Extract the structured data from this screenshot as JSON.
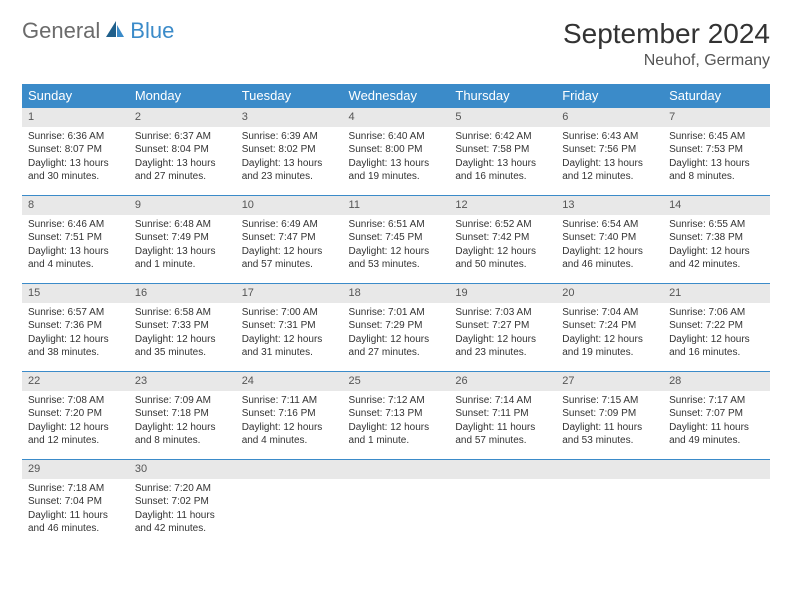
{
  "logo": {
    "text1": "General",
    "text2": "Blue"
  },
  "title": "September 2024",
  "location": "Neuhof, Germany",
  "colors": {
    "header_bg": "#3b8bc9",
    "header_text": "#ffffff",
    "daynum_bg": "#e8e8e8",
    "cell_border": "#3b8bc9",
    "body_text": "#333333",
    "logo_gray": "#6b6b6b",
    "logo_blue": "#3b8bc9",
    "page_bg": "#ffffff"
  },
  "typography": {
    "title_fontsize": 28,
    "location_fontsize": 16,
    "dayheader_fontsize": 13,
    "daynum_fontsize": 11,
    "cell_fontsize": 10
  },
  "dayHeaders": [
    "Sunday",
    "Monday",
    "Tuesday",
    "Wednesday",
    "Thursday",
    "Friday",
    "Saturday"
  ],
  "weeks": [
    [
      {
        "n": "1",
        "sr": "Sunrise: 6:36 AM",
        "ss": "Sunset: 8:07 PM",
        "dl": "Daylight: 13 hours and 30 minutes."
      },
      {
        "n": "2",
        "sr": "Sunrise: 6:37 AM",
        "ss": "Sunset: 8:04 PM",
        "dl": "Daylight: 13 hours and 27 minutes."
      },
      {
        "n": "3",
        "sr": "Sunrise: 6:39 AM",
        "ss": "Sunset: 8:02 PM",
        "dl": "Daylight: 13 hours and 23 minutes."
      },
      {
        "n": "4",
        "sr": "Sunrise: 6:40 AM",
        "ss": "Sunset: 8:00 PM",
        "dl": "Daylight: 13 hours and 19 minutes."
      },
      {
        "n": "5",
        "sr": "Sunrise: 6:42 AM",
        "ss": "Sunset: 7:58 PM",
        "dl": "Daylight: 13 hours and 16 minutes."
      },
      {
        "n": "6",
        "sr": "Sunrise: 6:43 AM",
        "ss": "Sunset: 7:56 PM",
        "dl": "Daylight: 13 hours and 12 minutes."
      },
      {
        "n": "7",
        "sr": "Sunrise: 6:45 AM",
        "ss": "Sunset: 7:53 PM",
        "dl": "Daylight: 13 hours and 8 minutes."
      }
    ],
    [
      {
        "n": "8",
        "sr": "Sunrise: 6:46 AM",
        "ss": "Sunset: 7:51 PM",
        "dl": "Daylight: 13 hours and 4 minutes."
      },
      {
        "n": "9",
        "sr": "Sunrise: 6:48 AM",
        "ss": "Sunset: 7:49 PM",
        "dl": "Daylight: 13 hours and 1 minute."
      },
      {
        "n": "10",
        "sr": "Sunrise: 6:49 AM",
        "ss": "Sunset: 7:47 PM",
        "dl": "Daylight: 12 hours and 57 minutes."
      },
      {
        "n": "11",
        "sr": "Sunrise: 6:51 AM",
        "ss": "Sunset: 7:45 PM",
        "dl": "Daylight: 12 hours and 53 minutes."
      },
      {
        "n": "12",
        "sr": "Sunrise: 6:52 AM",
        "ss": "Sunset: 7:42 PM",
        "dl": "Daylight: 12 hours and 50 minutes."
      },
      {
        "n": "13",
        "sr": "Sunrise: 6:54 AM",
        "ss": "Sunset: 7:40 PM",
        "dl": "Daylight: 12 hours and 46 minutes."
      },
      {
        "n": "14",
        "sr": "Sunrise: 6:55 AM",
        "ss": "Sunset: 7:38 PM",
        "dl": "Daylight: 12 hours and 42 minutes."
      }
    ],
    [
      {
        "n": "15",
        "sr": "Sunrise: 6:57 AM",
        "ss": "Sunset: 7:36 PM",
        "dl": "Daylight: 12 hours and 38 minutes."
      },
      {
        "n": "16",
        "sr": "Sunrise: 6:58 AM",
        "ss": "Sunset: 7:33 PM",
        "dl": "Daylight: 12 hours and 35 minutes."
      },
      {
        "n": "17",
        "sr": "Sunrise: 7:00 AM",
        "ss": "Sunset: 7:31 PM",
        "dl": "Daylight: 12 hours and 31 minutes."
      },
      {
        "n": "18",
        "sr": "Sunrise: 7:01 AM",
        "ss": "Sunset: 7:29 PM",
        "dl": "Daylight: 12 hours and 27 minutes."
      },
      {
        "n": "19",
        "sr": "Sunrise: 7:03 AM",
        "ss": "Sunset: 7:27 PM",
        "dl": "Daylight: 12 hours and 23 minutes."
      },
      {
        "n": "20",
        "sr": "Sunrise: 7:04 AM",
        "ss": "Sunset: 7:24 PM",
        "dl": "Daylight: 12 hours and 19 minutes."
      },
      {
        "n": "21",
        "sr": "Sunrise: 7:06 AM",
        "ss": "Sunset: 7:22 PM",
        "dl": "Daylight: 12 hours and 16 minutes."
      }
    ],
    [
      {
        "n": "22",
        "sr": "Sunrise: 7:08 AM",
        "ss": "Sunset: 7:20 PM",
        "dl": "Daylight: 12 hours and 12 minutes."
      },
      {
        "n": "23",
        "sr": "Sunrise: 7:09 AM",
        "ss": "Sunset: 7:18 PM",
        "dl": "Daylight: 12 hours and 8 minutes."
      },
      {
        "n": "24",
        "sr": "Sunrise: 7:11 AM",
        "ss": "Sunset: 7:16 PM",
        "dl": "Daylight: 12 hours and 4 minutes."
      },
      {
        "n": "25",
        "sr": "Sunrise: 7:12 AM",
        "ss": "Sunset: 7:13 PM",
        "dl": "Daylight: 12 hours and 1 minute."
      },
      {
        "n": "26",
        "sr": "Sunrise: 7:14 AM",
        "ss": "Sunset: 7:11 PM",
        "dl": "Daylight: 11 hours and 57 minutes."
      },
      {
        "n": "27",
        "sr": "Sunrise: 7:15 AM",
        "ss": "Sunset: 7:09 PM",
        "dl": "Daylight: 11 hours and 53 minutes."
      },
      {
        "n": "28",
        "sr": "Sunrise: 7:17 AM",
        "ss": "Sunset: 7:07 PM",
        "dl": "Daylight: 11 hours and 49 minutes."
      }
    ],
    [
      {
        "n": "29",
        "sr": "Sunrise: 7:18 AM",
        "ss": "Sunset: 7:04 PM",
        "dl": "Daylight: 11 hours and 46 minutes."
      },
      {
        "n": "30",
        "sr": "Sunrise: 7:20 AM",
        "ss": "Sunset: 7:02 PM",
        "dl": "Daylight: 11 hours and 42 minutes."
      },
      {
        "n": "",
        "sr": "",
        "ss": "",
        "dl": ""
      },
      {
        "n": "",
        "sr": "",
        "ss": "",
        "dl": ""
      },
      {
        "n": "",
        "sr": "",
        "ss": "",
        "dl": ""
      },
      {
        "n": "",
        "sr": "",
        "ss": "",
        "dl": ""
      },
      {
        "n": "",
        "sr": "",
        "ss": "",
        "dl": ""
      }
    ]
  ]
}
